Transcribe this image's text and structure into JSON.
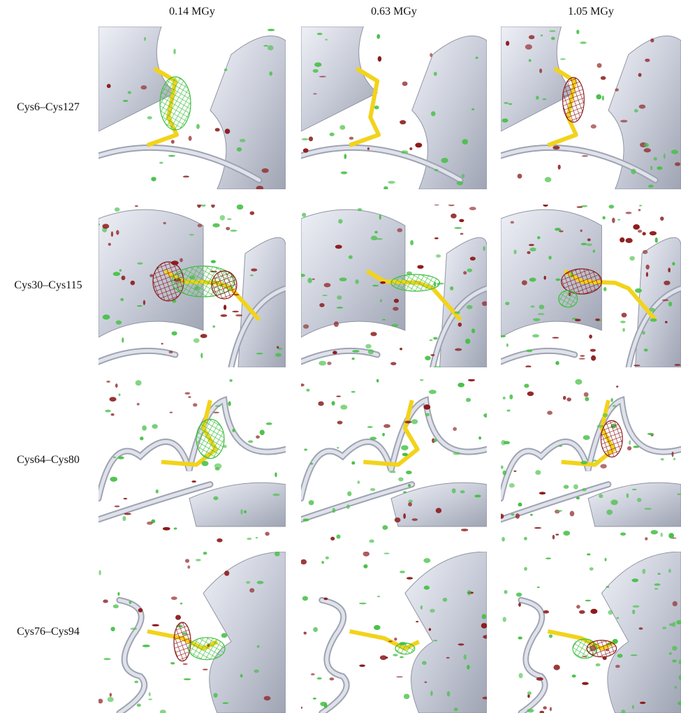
{
  "columns": [
    "0.14 MGy",
    "0.63 MGy",
    "1.05 MGy"
  ],
  "rows": [
    "Cys6–Cys127",
    "Cys30–Cys115",
    "Cys64–Cys80",
    "Cys76–Cys94"
  ]
}
